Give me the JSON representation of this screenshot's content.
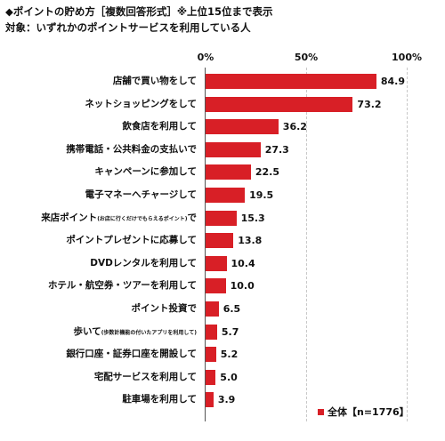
{
  "title": "◆ポイントの貯め方［複数回答形式］※上位15位まで表示",
  "subtitle": "対象：いずれかのポイントサービスを利用している人",
  "legend": {
    "label": "全体【n=1776】",
    "color": "#d81f26"
  },
  "chart_data": {
    "type": "bar",
    "orientation": "horizontal",
    "xlim": [
      0,
      100
    ],
    "x_ticks": [
      "0%",
      "50%",
      "100%"
    ],
    "categories": [
      "店舗で買い物をして",
      "ネットショッピングをして",
      "飲食店を利用して",
      "携帯電話・公共料金の支払いで",
      "キャンペーンに参加して",
      "電子マネーへチャージして",
      "来店ポイント(お店に行くだけでもらえるポイント)で",
      "ポイントプレゼントに応募して",
      "DVDレンタルを利用して",
      "ホテル・航空券・ツアーを利用して",
      "ポイント投資で",
      "歩いて(歩数計機能の付いたアプリを利用して)",
      "銀行口座・証券口座を開設して",
      "宅配サービスを利用して",
      "駐車場を利用して"
    ],
    "category_parts": [
      {
        "main": "店舗で買い物をして",
        "small": "",
        "tail": ""
      },
      {
        "main": "ネットショッピングをして",
        "small": "",
        "tail": ""
      },
      {
        "main": "飲食店を利用して",
        "small": "",
        "tail": ""
      },
      {
        "main": "携帯電話・公共料金の支払いで",
        "small": "",
        "tail": ""
      },
      {
        "main": "キャンペーンに参加して",
        "small": "",
        "tail": ""
      },
      {
        "main": "電子マネーへチャージして",
        "small": "",
        "tail": ""
      },
      {
        "main": "来店ポイント",
        "small": "(お店に行くだけでもらえるポイント)",
        "tail": "で"
      },
      {
        "main": "ポイントプレゼントに応募して",
        "small": "",
        "tail": ""
      },
      {
        "main": "DVDレンタルを利用して",
        "small": "",
        "tail": ""
      },
      {
        "main": "ホテル・航空券・ツアーを利用して",
        "small": "",
        "tail": ""
      },
      {
        "main": "ポイント投資で",
        "small": "",
        "tail": ""
      },
      {
        "main": "歩いて",
        "small": "(歩数計機能の付いたアプリを利用して)",
        "tail": ""
      },
      {
        "main": "銀行口座・証券口座を開設して",
        "small": "",
        "tail": ""
      },
      {
        "main": "宅配サービスを利用して",
        "small": "",
        "tail": ""
      },
      {
        "main": "駐車場を利用して",
        "small": "",
        "tail": ""
      }
    ],
    "values": [
      84.9,
      73.2,
      36.2,
      27.3,
      22.5,
      19.5,
      15.3,
      13.8,
      10.4,
      10.0,
      6.5,
      5.7,
      5.2,
      5.0,
      3.9
    ],
    "value_labels": [
      "84.9",
      "73.2",
      "36.2",
      "27.3",
      "22.5",
      "19.5",
      "15.3",
      "13.8",
      "10.4",
      "10.0",
      "6.5",
      "5.7",
      "5.2",
      "5.0",
      "3.9"
    ],
    "series_name": "全体【n=1776】"
  }
}
